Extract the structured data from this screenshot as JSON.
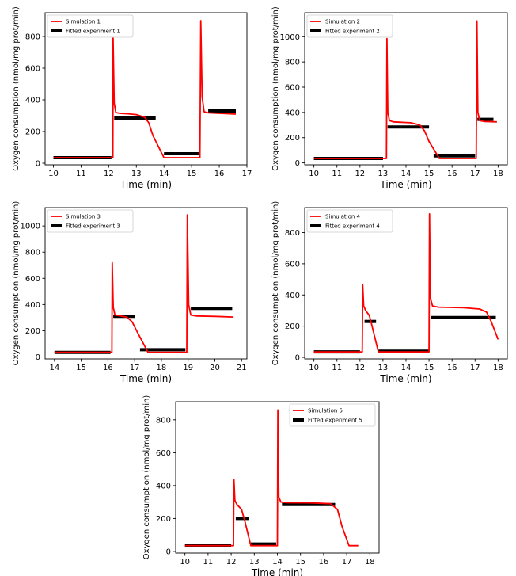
{
  "chart_data": [
    {
      "type": "line",
      "title": "",
      "xlabel": "Time (min)",
      "ylabel": "Oxygen consumption (nmol/mg prot/min)",
      "xlim": [
        9.7,
        17.0
      ],
      "ylim": [
        -10,
        950
      ],
      "xticks": [
        10,
        11,
        12,
        13,
        14,
        15,
        16,
        17
      ],
      "yticks": [
        0,
        200,
        400,
        600,
        800
      ],
      "legend": {
        "position": "top-left",
        "entries": [
          "Simulation 1",
          "Fitted experiment 1"
        ]
      },
      "simulation": {
        "name": "Simulation 1",
        "color": "#ff0000",
        "x": [
          10.0,
          12.15,
          12.16,
          12.2,
          12.26,
          12.4,
          12.7,
          13.0,
          13.3,
          13.45,
          13.6,
          14.0,
          15.3,
          15.33,
          15.38,
          15.45,
          15.6,
          16.0,
          16.6
        ],
        "y": [
          35,
          35,
          790,
          380,
          320,
          315,
          312,
          307,
          290,
          255,
          175,
          35,
          35,
          900,
          420,
          325,
          318,
          315,
          310
        ]
      },
      "fitted": {
        "name": "Fitted experiment 1",
        "color": "#000000",
        "segments": [
          {
            "x": [
              10.0,
              12.1
            ],
            "y": 35
          },
          {
            "x": [
              12.2,
              13.7
            ],
            "y": 285
          },
          {
            "x": [
              14.0,
              15.3
            ],
            "y": 60
          },
          {
            "x": [
              15.6,
              16.6
            ],
            "y": 330
          }
        ]
      }
    },
    {
      "type": "line",
      "title": "",
      "xlabel": "Time (min)",
      "ylabel": "Oxygen consumption (nmol/mg prot/min)",
      "xlim": [
        9.6,
        18.4
      ],
      "ylim": [
        -15,
        1190
      ],
      "xticks": [
        10,
        11,
        12,
        13,
        14,
        15,
        16,
        17,
        18
      ],
      "yticks": [
        0,
        200,
        400,
        600,
        800,
        1000
      ],
      "legend": {
        "position": "top-left",
        "entries": [
          "Simulation 2",
          "Fitted experiment 2"
        ]
      },
      "simulation": {
        "name": "Simulation 2",
        "color": "#ff0000",
        "x": [
          10.0,
          13.15,
          13.17,
          13.21,
          13.28,
          13.45,
          13.8,
          14.2,
          14.6,
          14.8,
          15.0,
          15.45,
          17.05,
          17.08,
          17.12,
          17.2,
          17.4,
          17.95
        ],
        "y": [
          35,
          35,
          985,
          400,
          335,
          325,
          322,
          318,
          300,
          255,
          170,
          35,
          35,
          1125,
          400,
          335,
          328,
          325
        ]
      },
      "fitted": {
        "name": "Fitted experiment 2",
        "color": "#000000",
        "segments": [
          {
            "x": [
              10.0,
              13.0
            ],
            "y": 35
          },
          {
            "x": [
              13.2,
              15.0
            ],
            "y": 285
          },
          {
            "x": [
              15.2,
              17.0
            ],
            "y": 55
          },
          {
            "x": [
              17.1,
              17.8
            ],
            "y": 345
          }
        ]
      }
    },
    {
      "type": "line",
      "title": "",
      "xlabel": "Time (min)",
      "ylabel": "Oxygen consumption (nmol/mg prot/min)",
      "xlim": [
        13.65,
        21.2
      ],
      "ylim": [
        -15,
        1140
      ],
      "xticks": [
        14,
        15,
        16,
        17,
        18,
        19,
        20,
        21
      ],
      "yticks": [
        0,
        200,
        400,
        600,
        800,
        1000
      ],
      "legend": {
        "position": "top-left",
        "entries": [
          "Simulation 3",
          "Fitted experiment 3"
        ]
      },
      "simulation": {
        "name": "Simulation 3",
        "color": "#ff0000",
        "x": [
          14.0,
          16.15,
          16.16,
          16.2,
          16.26,
          16.4,
          16.7,
          16.9,
          17.1,
          17.5,
          18.95,
          18.97,
          19.02,
          19.1,
          19.3,
          20.0,
          20.7
        ],
        "y": [
          35,
          35,
          720,
          380,
          320,
          315,
          305,
          270,
          190,
          35,
          35,
          1085,
          400,
          320,
          313,
          310,
          305
        ]
      },
      "fitted": {
        "name": "Fitted experiment 3",
        "color": "#000000",
        "segments": [
          {
            "x": [
              14.0,
              16.1
            ],
            "y": 35
          },
          {
            "x": [
              16.2,
              17.0
            ],
            "y": 310
          },
          {
            "x": [
              17.2,
              18.9
            ],
            "y": 55
          },
          {
            "x": [
              19.1,
              20.65
            ],
            "y": 370
          }
        ]
      }
    },
    {
      "type": "line",
      "title": "",
      "xlabel": "Time (min)",
      "ylabel": "Oxygen consumption (nmol/mg prot/min)",
      "xlim": [
        9.6,
        18.4
      ],
      "ylim": [
        -10,
        960
      ],
      "xticks": [
        10,
        11,
        12,
        13,
        14,
        15,
        16,
        17,
        18
      ],
      "yticks": [
        0,
        200,
        400,
        600,
        800
      ],
      "legend": {
        "position": "top-left",
        "entries": [
          "Simulation 4",
          "Fitted experiment 4"
        ]
      },
      "simulation": {
        "name": "Simulation 4",
        "color": "#ff0000",
        "x": [
          10.0,
          12.1,
          12.12,
          12.16,
          12.25,
          12.4,
          12.5,
          12.8,
          15.0,
          15.02,
          15.06,
          15.15,
          15.4,
          16.5,
          17.2,
          17.5,
          17.7,
          18.0
        ],
        "y": [
          35,
          35,
          465,
          330,
          300,
          270,
          215,
          35,
          35,
          920,
          380,
          330,
          322,
          318,
          310,
          290,
          230,
          115
        ]
      },
      "fitted": {
        "name": "Fitted experiment 4",
        "color": "#000000",
        "segments": [
          {
            "x": [
              10.0,
              12.0
            ],
            "y": 35
          },
          {
            "x": [
              12.2,
              12.7
            ],
            "y": 230
          },
          {
            "x": [
              12.8,
              15.0
            ],
            "y": 40
          },
          {
            "x": [
              15.1,
              17.9
            ],
            "y": 255
          }
        ]
      }
    },
    {
      "type": "line",
      "title": "",
      "xlabel": "Time (min)",
      "ylabel": "Oxygen consumption (nmol/mg prot/min)",
      "xlim": [
        9.6,
        18.4
      ],
      "ylim": [
        -10,
        910
      ],
      "xticks": [
        10,
        11,
        12,
        13,
        14,
        15,
        16,
        17,
        18
      ],
      "yticks": [
        0,
        200,
        400,
        600,
        800
      ],
      "legend": {
        "position": "top-right",
        "entries": [
          "Simulation 5",
          "Fitted experiment 5"
        ]
      },
      "simulation": {
        "name": "Simulation 5",
        "color": "#ff0000",
        "x": [
          10.0,
          12.1,
          12.12,
          12.16,
          12.25,
          12.45,
          12.6,
          12.85,
          14.0,
          14.02,
          14.06,
          14.15,
          14.4,
          15.5,
          16.3,
          16.6,
          16.8,
          17.1,
          17.5
        ],
        "y": [
          35,
          35,
          435,
          310,
          285,
          255,
          180,
          35,
          35,
          860,
          330,
          300,
          297,
          295,
          290,
          255,
          150,
          35,
          35
        ]
      },
      "fitted": {
        "name": "Fitted experiment 5",
        "color": "#000000",
        "segments": [
          {
            "x": [
              10.0,
              12.0
            ],
            "y": 35
          },
          {
            "x": [
              12.2,
              12.75
            ],
            "y": 200
          },
          {
            "x": [
              12.85,
              13.95
            ],
            "y": 45
          },
          {
            "x": [
              14.2,
              16.5
            ],
            "y": 285
          }
        ]
      }
    }
  ]
}
